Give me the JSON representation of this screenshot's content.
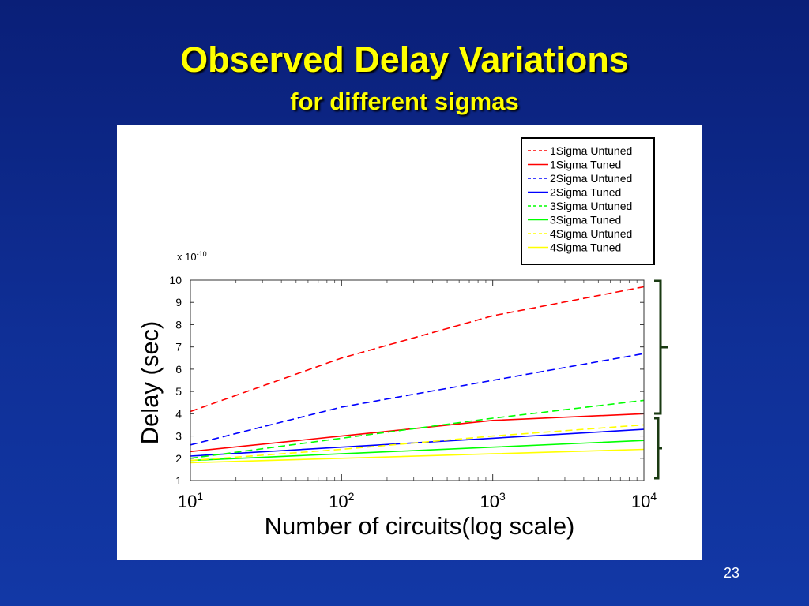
{
  "slide": {
    "title": "Observed Delay Variations",
    "subtitle": "for different sigmas",
    "page_number": "23"
  },
  "colors": {
    "background": "#0f2f96",
    "title": "#ffff00",
    "bracket": "#1a3a12"
  },
  "chart_data": {
    "type": "line",
    "title": "",
    "xlabel": "Number of circuits(log scale)",
    "ylabel": "Delay (sec)",
    "y_multiplier": "x 10",
    "y_multiplier_exp": "-10",
    "x_scale": "log",
    "xlim": [
      10,
      10000
    ],
    "ylim": [
      1,
      10
    ],
    "yticks": [
      1,
      2,
      3,
      4,
      5,
      6,
      7,
      8,
      9,
      10
    ],
    "xticks": [
      {
        "value": 10,
        "base": "10",
        "exp": "1"
      },
      {
        "value": 100,
        "base": "10",
        "exp": "2"
      },
      {
        "value": 1000,
        "base": "10",
        "exp": "3"
      },
      {
        "value": 10000,
        "base": "10",
        "exp": "4"
      }
    ],
    "legend_position": "top-right",
    "x": [
      10,
      100,
      1000,
      10000
    ],
    "series": [
      {
        "name": "1Sigma Untuned",
        "color": "#ff0000",
        "style": "dashed",
        "values": [
          4.1,
          6.5,
          8.4,
          9.7
        ]
      },
      {
        "name": "1Sigma Tuned",
        "color": "#ff0000",
        "style": "solid",
        "values": [
          2.3,
          3.0,
          3.7,
          4.0
        ]
      },
      {
        "name": "2Sigma Untuned",
        "color": "#0000ff",
        "style": "dashed",
        "values": [
          2.6,
          4.3,
          5.5,
          6.7
        ]
      },
      {
        "name": "2Sigma Tuned",
        "color": "#0000ff",
        "style": "solid",
        "values": [
          2.1,
          2.5,
          2.9,
          3.3
        ]
      },
      {
        "name": "3Sigma Untuned",
        "color": "#00ff00",
        "style": "dashed",
        "values": [
          2.0,
          2.9,
          3.8,
          4.6
        ]
      },
      {
        "name": "3Sigma Tuned",
        "color": "#00ff00",
        "style": "solid",
        "values": [
          1.9,
          2.2,
          2.5,
          2.8
        ]
      },
      {
        "name": "4Sigma Untuned",
        "color": "#ffff00",
        "style": "dashed",
        "values": [
          1.9,
          2.4,
          3.0,
          3.5
        ]
      },
      {
        "name": "4Sigma Tuned",
        "color": "#ffff00",
        "style": "solid",
        "values": [
          1.8,
          2.0,
          2.2,
          2.4
        ]
      }
    ]
  }
}
